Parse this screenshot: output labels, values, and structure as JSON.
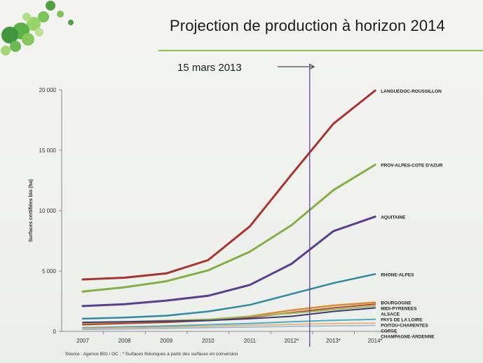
{
  "slide": {
    "title": "Projection de production à horizon 2014",
    "annotation": "15 mars 2013",
    "source": "Source : Agence BIO / OC ; * Surfaces théoriques à partir des surfaces en conversion"
  },
  "colors": {
    "title_rule": "#8cc63f",
    "marker_line": "#5b3a99"
  },
  "chart_data": {
    "type": "line",
    "title": "",
    "xlabel": "",
    "ylabel": "Surfaces certifiées bio (ha)",
    "categories": [
      "2007",
      "2008",
      "2009",
      "2010",
      "2011",
      "2012*",
      "2013*",
      "2014*"
    ],
    "ylim": [
      0,
      20000
    ],
    "yticks": [
      0,
      5000,
      10000,
      15000,
      20000
    ],
    "ytick_labels": [
      "0",
      "5 000",
      "10 000",
      "15 000",
      "20 000"
    ],
    "grid": false,
    "legend": "labels at line ends (right)",
    "marker_after_category": "2012*",
    "series": [
      {
        "name": "LANGUEDOC-ROUSSILLON",
        "color": "#a8342f",
        "width": 3,
        "values": [
          4300,
          4450,
          4800,
          5900,
          8700,
          13000,
          17200,
          19950
        ]
      },
      {
        "name": "PROV-ALPES-COTE D'AZUR",
        "color": "#82b043",
        "width": 3,
        "values": [
          3300,
          3650,
          4150,
          5050,
          6600,
          8800,
          11700,
          13800
        ]
      },
      {
        "name": "AQUITAINE",
        "color": "#5b3f8f",
        "width": 3,
        "values": [
          2100,
          2250,
          2550,
          2950,
          3850,
          5600,
          8300,
          9500
        ]
      },
      {
        "name": "RHONE-ALPES",
        "color": "#2f8aa3",
        "width": 2.5,
        "values": [
          1050,
          1150,
          1300,
          1650,
          2200,
          3100,
          4000,
          4750
        ]
      },
      {
        "name": "BOURGOGNE",
        "color": "#d98c35",
        "width": 2.5,
        "values": [
          600,
          700,
          800,
          950,
          1250,
          1750,
          2150,
          2400
        ]
      },
      {
        "name": "MIDI-PYRENEES",
        "color": "#b5482a",
        "width": 2,
        "values": [
          550,
          650,
          750,
          900,
          1150,
          1550,
          1950,
          2250
        ]
      },
      {
        "name": "ALSACE",
        "color": "#9bbb59",
        "width": 2,
        "values": [
          700,
          800,
          900,
          1000,
          1250,
          1500,
          1800,
          2100
        ]
      },
      {
        "name": "PAYS DE LA LOIRE",
        "color": "#3f3a7a",
        "width": 2,
        "values": [
          750,
          800,
          850,
          900,
          1050,
          1250,
          1650,
          1950
        ]
      },
      {
        "name": "POITOU-CHARENTES",
        "color": "#4bacc6",
        "width": 2,
        "values": [
          300,
          380,
          450,
          550,
          650,
          800,
          920,
          1000
        ]
      },
      {
        "name": "CORSE",
        "color": "#f0a55a",
        "width": 1.5,
        "values": [
          250,
          300,
          350,
          420,
          500,
          580,
          650,
          700
        ]
      },
      {
        "name": "CHAMPAGNE-ARDENNE",
        "color": "#8fb4d8",
        "width": 1.5,
        "values": [
          150,
          200,
          250,
          300,
          350,
          420,
          460,
          500
        ]
      }
    ]
  }
}
